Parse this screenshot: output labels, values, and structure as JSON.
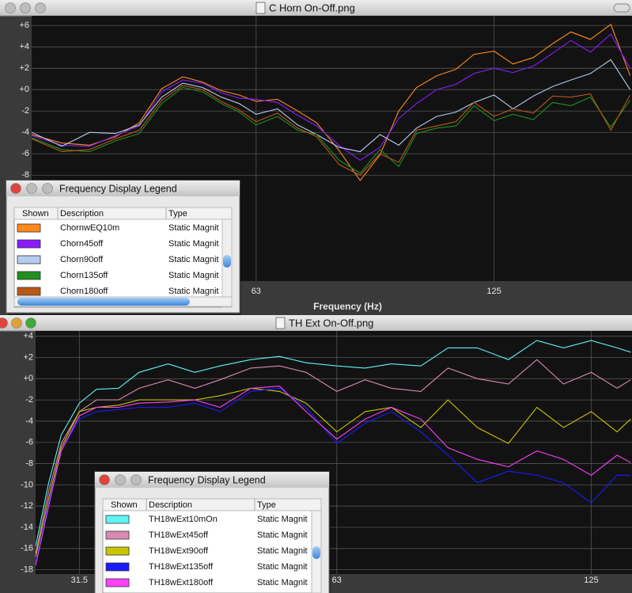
{
  "chart_data": [
    {
      "type": "line",
      "title": "C Horn On-Off.png",
      "xlabel": "Frequency (Hz)",
      "xscale": "log",
      "grid": true,
      "x": [
        33,
        36,
        39,
        42,
        45,
        48,
        51,
        54,
        57,
        60,
        63,
        67,
        71,
        75,
        80,
        85,
        90,
        95,
        100,
        106,
        112,
        118,
        125,
        132,
        140,
        148,
        156,
        165,
        175,
        185
      ],
      "xlim": [
        33,
        186
      ],
      "xticks": [
        63,
        125
      ],
      "ylim": [
        -17.9,
        6.9
      ],
      "yticks": [
        {
          "value": 6,
          "label": "+6"
        },
        {
          "value": 4,
          "label": "+4"
        },
        {
          "value": 2,
          "label": "+2"
        },
        {
          "value": 0,
          "label": "+0"
        },
        -2,
        -4,
        -6,
        -8
      ],
      "series": [
        {
          "name": "ChornwEQ10m",
          "color": "#ff8a1c",
          "values": [
            -4.2,
            -5,
            -5.2,
            -4.4,
            -3.1,
            0.1,
            1.2,
            0.7,
            -0.1,
            -0.5,
            -1.1,
            -0.9,
            -2,
            -3.1,
            -5.7,
            -8.5,
            -6.1,
            -2,
            0.2,
            1.3,
            1.9,
            3.3,
            3.6,
            2.4,
            3,
            4.3,
            5.4,
            4.7,
            6.1,
            1.3
          ]
        },
        {
          "name": "Chorn45off",
          "color": "#8a1cff",
          "values": [
            -4.3,
            -5.2,
            -5.3,
            -4.3,
            -3.4,
            -0.2,
            0.9,
            0.6,
            -0.3,
            -0.8,
            -0.9,
            -1.2,
            -2.4,
            -3.4,
            -5.2,
            -6.6,
            -5.4,
            -2.7,
            -1.3,
            0,
            0.5,
            1.5,
            2,
            1.6,
            2.2,
            3.4,
            4.6,
            3.5,
            5.2,
            2
          ]
        },
        {
          "name": "Chorn90off",
          "color": "#b4cdf0",
          "values": [
            -4,
            -5.3,
            -4,
            -4.1,
            -3.3,
            -0.7,
            0.6,
            0.2,
            -0.7,
            -1.3,
            -2.3,
            -1.8,
            -3.3,
            -4.2,
            -5.4,
            -5.8,
            -4.2,
            -5.2,
            -3.6,
            -2.5,
            -2.1,
            -1.2,
            -0.5,
            -1.8,
            -0.6,
            0.3,
            0.9,
            1.5,
            2.8,
            0
          ]
        },
        {
          "name": "Chorn135off",
          "color": "#1f8f1f",
          "values": [
            -4.5,
            -5.6,
            -5.8,
            -4.8,
            -4.1,
            -1.3,
            0.2,
            -0.2,
            -1.3,
            -2.1,
            -3.3,
            -2.5,
            -3.8,
            -4.2,
            -6.6,
            -7.8,
            -5.6,
            -7.2,
            -4.1,
            -3.6,
            -3.4,
            -1.5,
            -2.9,
            -2.3,
            -2.8,
            -1.2,
            -1.5,
            -0.7,
            -3.5,
            -1
          ]
        },
        {
          "name": "Chorn180off",
          "color": "#b85a16",
          "values": [
            -4.6,
            -5.8,
            -5.6,
            -4.6,
            -3.8,
            -1,
            0.4,
            0,
            -1.1,
            -1.9,
            -3,
            -2.2,
            -3.6,
            -4.4,
            -7,
            -8,
            -6,
            -6.8,
            -3.8,
            -3.4,
            -3,
            -1.2,
            -2.5,
            -1.8,
            -2.2,
            -0.6,
            -0.7,
            -0.4,
            -3.8,
            -0.5
          ]
        }
      ],
      "legend": {
        "title": "Frequency Display Legend",
        "columns": [
          "Shown",
          "Description",
          "Type"
        ],
        "types": [
          "Static Magnit",
          "Static Magnit",
          "Static Magnit",
          "Static Magnit",
          "Static Magnit"
        ]
      }
    },
    {
      "type": "line",
      "title": "TH Ext On-Off.png",
      "xscale": "log",
      "grid": true,
      "x": [
        28,
        29,
        30,
        31.5,
        33,
        35,
        37,
        40,
        43,
        46,
        50,
        54,
        58,
        63,
        68,
        73,
        79,
        85,
        92,
        100,
        108,
        116,
        125,
        134,
        139
      ],
      "xlim": [
        28,
        139.5
      ],
      "xticks": [
        31.5,
        63,
        125
      ],
      "ylim": [
        -18.4,
        4.5
      ],
      "yticks": [
        {
          "value": 4,
          "label": "+4"
        },
        {
          "value": 2,
          "label": "+2"
        },
        {
          "value": 0,
          "label": "+0"
        },
        -2,
        -4,
        -6,
        -8,
        -10,
        -12,
        -14,
        -16,
        -18
      ],
      "series": [
        {
          "name": "TH18wExt10mOn",
          "color": "#5ef4f4",
          "values": [
            -15.8,
            -9.8,
            -5.3,
            -2.3,
            -1,
            -0.9,
            0.6,
            1.4,
            0.6,
            1.2,
            1.8,
            2.1,
            1.5,
            1.2,
            1,
            1.4,
            1.2,
            2.9,
            2.9,
            1.8,
            3.6,
            2.9,
            3.6,
            2.9,
            2.5
          ]
        },
        {
          "name": "TH18wExt45off",
          "color": "#d98ab2",
          "values": [
            -16.5,
            -10.6,
            -6.1,
            -3.1,
            -2,
            -2,
            -0.9,
            -0.1,
            -0.9,
            -0.1,
            1,
            1.2,
            0.6,
            -1.2,
            -0.1,
            -0.9,
            -1.2,
            1,
            0,
            -0.5,
            1.8,
            -0.5,
            0.6,
            -0.9,
            -0.1
          ]
        },
        {
          "name": "TH18wExt90off",
          "color": "#c8c400",
          "values": [
            -16.8,
            -11.3,
            -6.5,
            -3.1,
            -2.7,
            -2.5,
            -2,
            -2,
            -2,
            -1.6,
            -0.9,
            -1.2,
            -2.3,
            -5,
            -3.1,
            -2.7,
            -4.6,
            -2,
            -4.6,
            -6.1,
            -2.7,
            -4.6,
            -3.1,
            -5,
            -3.8
          ]
        },
        {
          "name": "TH18wExt135off",
          "color": "#1a1aff",
          "values": [
            -17.3,
            -11.7,
            -6.8,
            -3.8,
            -3.1,
            -2.9,
            -2.7,
            -2.7,
            -2.3,
            -3.1,
            -1.2,
            -0.9,
            -2.7,
            -6.1,
            -4.2,
            -3.1,
            -5,
            -7.2,
            -9.8,
            -8.7,
            -9.1,
            -9.8,
            -11.7,
            -9.1,
            -9.1
          ]
        },
        {
          "name": "TH18wExt180off",
          "color": "#ff40ff",
          "values": [
            -17.6,
            -12,
            -6.8,
            -3.5,
            -2.7,
            -2.7,
            -2.3,
            -2.2,
            -2,
            -2.7,
            -0.9,
            -0.7,
            -3.1,
            -5.7,
            -3.8,
            -2.7,
            -3.8,
            -6.5,
            -7.6,
            -8.3,
            -6.8,
            -7.6,
            -9.1,
            -7.2,
            -7.9
          ]
        }
      ],
      "legend": {
        "title": "Frequency Display Legend",
        "columns": [
          "Shown",
          "Description",
          "Type"
        ],
        "types": [
          "Static Magnit",
          "Static Magnit",
          "Static Magnit",
          "Static Magnit",
          "Static Magnit"
        ]
      }
    }
  ]
}
